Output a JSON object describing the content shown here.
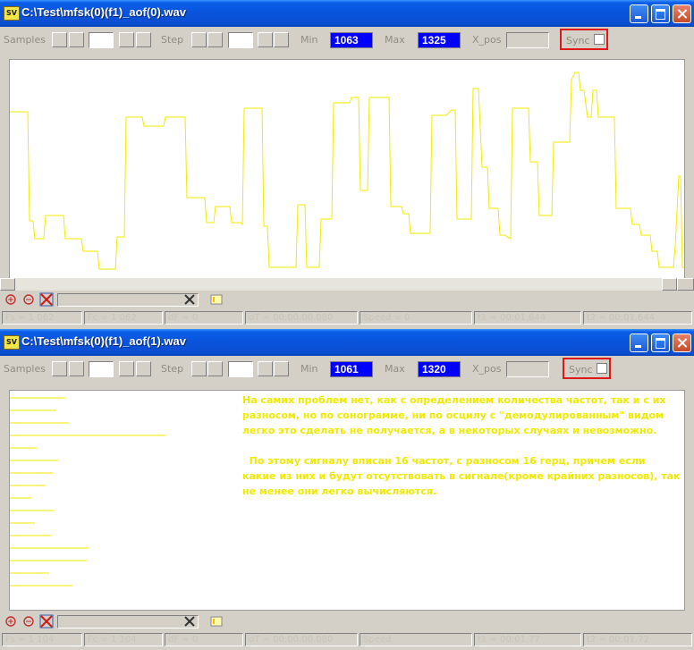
{
  "windows": [
    {
      "title": "C:\\Test\\mfsk(0)(f1)_aof(0).wav",
      "app_icon": "SV",
      "toolbar": {
        "samples_label": "Samples",
        "step_label": "Step",
        "min_label": "Min",
        "min_value": "1063",
        "max_label": "Max",
        "max_value": "1325",
        "x_label": "X_pos",
        "sync_label": "Sync"
      },
      "status": [
        "Fs = 1 062",
        "Fc = 1 062",
        "dF = 0",
        "dT = 00:00:00.080",
        "Speed = 0",
        "t1 = 00:01.644",
        "t2 = 00:01.644"
      ]
    },
    {
      "title": "C:\\Test\\mfsk(0)(f1)_aof(1).wav",
      "app_icon": "SV",
      "toolbar": {
        "samples_label": "Samples",
        "step_label": "Step",
        "min_label": "Min",
        "min_value": "1061",
        "max_label": "Max",
        "max_value": "1320",
        "x_label": "X_pos",
        "sync_label": "Sync"
      },
      "status": [
        "Fs = 1 104",
        "Fc = 1 104",
        "dF = 0",
        "dT = 00:00:00.080",
        "Speed",
        "t1 = 00:01.77",
        "t2 = 00:01.72"
      ],
      "note": [
        "На самих проблем нет, как с определением количества частот, так и с их разносом, но по сонограмме, ни по оcцилу с \"демодулированным\" видом легко это сделать не получается, а в некоторых случаях и невозможно.",
        "  По этому сигналу вписан 16 частот, с разносом 16 герц, причем если какие из них и будут отсутствовать в сигнале(кроме крайних разносов), так не менее они легко вычисляются."
      ]
    }
  ],
  "colors": {
    "trace": "#f0ea00",
    "value_box": "#0000ff",
    "sync_frame": "#e01818",
    "titlebar": "#0a53dc"
  },
  "icons": [
    "zoom-in-icon",
    "zoom-out-icon",
    "delete-icon",
    "clear-icon",
    "marker-icon"
  ]
}
